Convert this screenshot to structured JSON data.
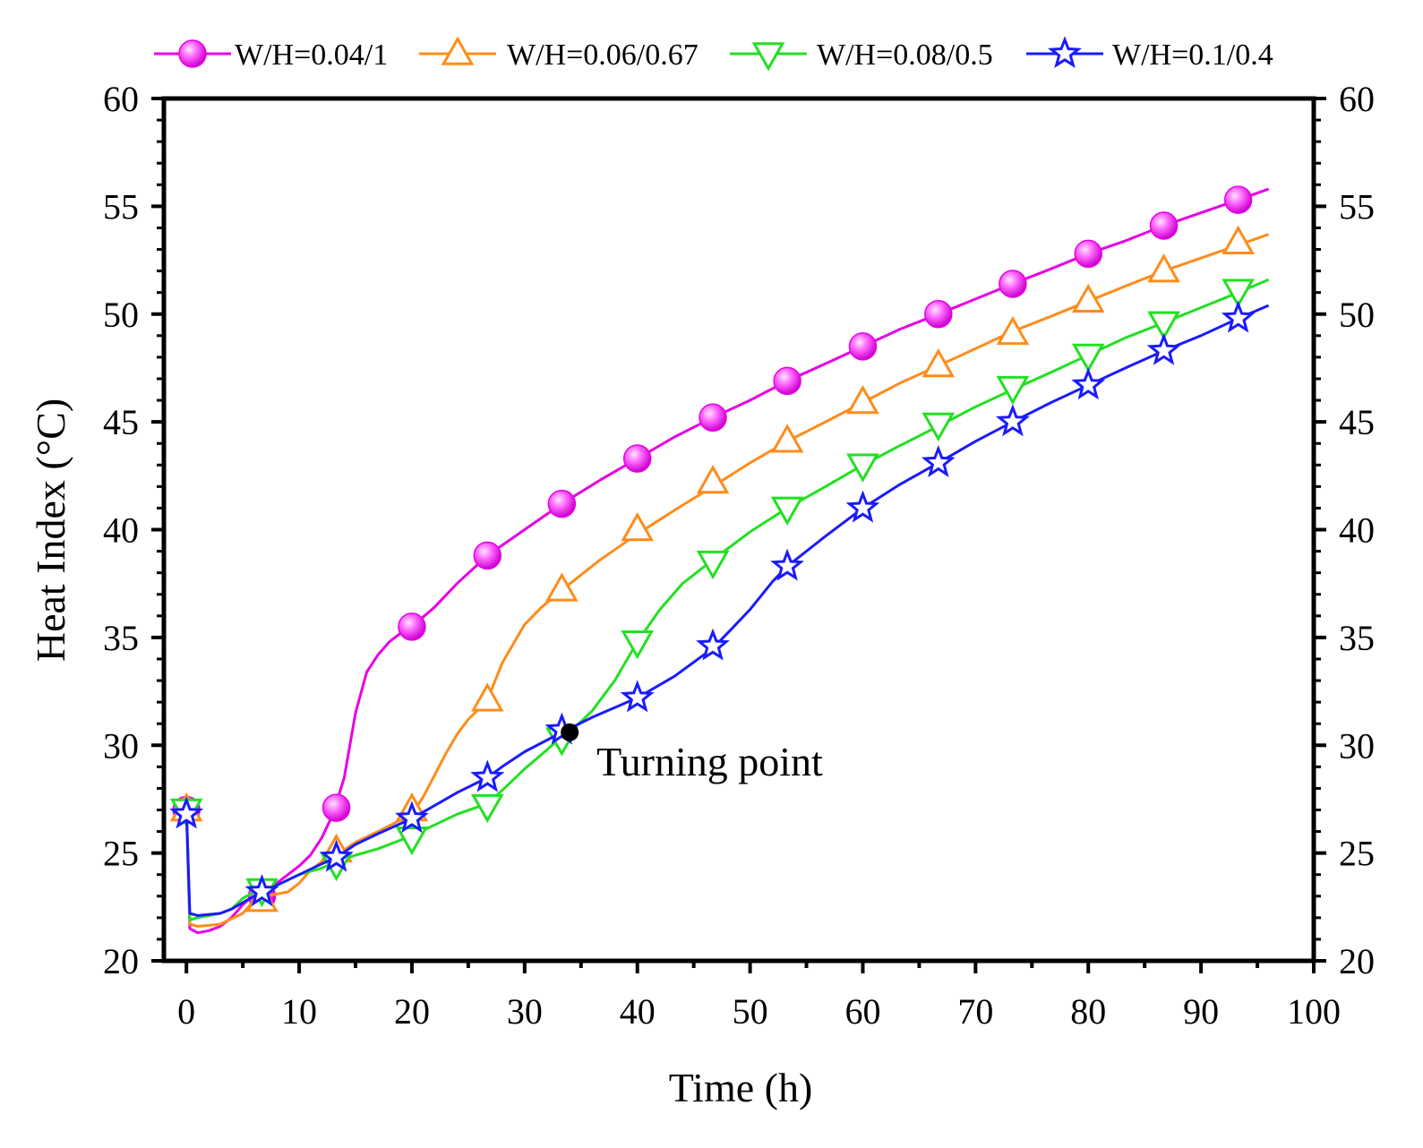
{
  "chart_data": {
    "type": "line",
    "title": "",
    "xlabel": "Time (h)",
    "ylabel": "Heat Index (°C)",
    "xlim": [
      -2,
      100
    ],
    "ylim": [
      20,
      60
    ],
    "xticks": [
      0,
      10,
      20,
      30,
      40,
      50,
      60,
      70,
      80,
      90,
      100
    ],
    "yticks": [
      20,
      25,
      30,
      35,
      40,
      45,
      50,
      55,
      60
    ],
    "xtick_labels": [
      "0",
      "10",
      "20",
      "30",
      "40",
      "50",
      "60",
      "70",
      "80",
      "90",
      "100"
    ],
    "ytick_labels": [
      "20",
      "25",
      "30",
      "35",
      "40",
      "45",
      "50",
      "55",
      "60"
    ],
    "legend_position": "top",
    "series": [
      {
        "name": "W/H=0.04/1",
        "color": "#e600e6",
        "marker": "sphere",
        "curve": [
          [
            0,
            27
          ],
          [
            0.3,
            21.5
          ],
          [
            1,
            21.3
          ],
          [
            2,
            21.4
          ],
          [
            3,
            21.6
          ],
          [
            4,
            22.0
          ],
          [
            5,
            22.6
          ],
          [
            6,
            23.1
          ],
          [
            7,
            23.3
          ],
          [
            8,
            23.6
          ],
          [
            9,
            24.0
          ],
          [
            10,
            24.4
          ],
          [
            11,
            24.9
          ],
          [
            12,
            25.7
          ],
          [
            13,
            26.8
          ],
          [
            14,
            28.5
          ],
          [
            15,
            31.5
          ],
          [
            16,
            33.4
          ],
          [
            17,
            34.2
          ],
          [
            18,
            34.8
          ],
          [
            19,
            35.2
          ],
          [
            20,
            35.5
          ],
          [
            22,
            36.4
          ],
          [
            24,
            37.5
          ],
          [
            26.7,
            38.8
          ],
          [
            30,
            40.0
          ],
          [
            33.3,
            41.2
          ],
          [
            36.7,
            42.3
          ],
          [
            40,
            43.3
          ],
          [
            43.3,
            44.3
          ],
          [
            46.7,
            45.2
          ],
          [
            50,
            46.0
          ],
          [
            53.3,
            46.9
          ],
          [
            56.7,
            47.7
          ],
          [
            60,
            48.5
          ],
          [
            63.3,
            49.3
          ],
          [
            66.7,
            50.0
          ],
          [
            70,
            50.7
          ],
          [
            73.3,
            51.4
          ],
          [
            76.7,
            52.1
          ],
          [
            80,
            52.8
          ],
          [
            83.3,
            53.4
          ],
          [
            86.7,
            54.1
          ],
          [
            90,
            54.7
          ],
          [
            93.3,
            55.3
          ],
          [
            96,
            55.8
          ]
        ],
        "markers": [
          [
            0,
            27
          ],
          [
            6.7,
            23.0
          ],
          [
            13.3,
            27.1
          ],
          [
            20,
            35.5
          ],
          [
            26.7,
            38.8
          ],
          [
            33.3,
            41.2
          ],
          [
            40,
            43.3
          ],
          [
            46.7,
            45.2
          ],
          [
            53.3,
            46.9
          ],
          [
            60,
            48.5
          ],
          [
            66.7,
            50.0
          ],
          [
            73.3,
            51.4
          ],
          [
            80,
            52.8
          ],
          [
            86.7,
            54.1
          ],
          [
            93.3,
            55.3
          ]
        ]
      },
      {
        "name": "W/H=0.06/0.67",
        "color": "#ff8c1a",
        "marker": "triangle-up",
        "curve": [
          [
            0,
            27
          ],
          [
            0.3,
            21.7
          ],
          [
            1,
            21.6
          ],
          [
            3,
            21.7
          ],
          [
            5,
            22.2
          ],
          [
            6,
            22.8
          ],
          [
            7,
            23.0
          ],
          [
            9,
            23.2
          ],
          [
            10,
            23.6
          ],
          [
            11,
            24.2
          ],
          [
            12,
            24.6
          ],
          [
            13.3,
            24.9
          ],
          [
            15,
            25.5
          ],
          [
            17,
            26.0
          ],
          [
            20,
            26.8
          ],
          [
            21,
            27.6
          ],
          [
            22,
            28.6
          ],
          [
            23,
            29.6
          ],
          [
            24,
            30.5
          ],
          [
            25,
            31.2
          ],
          [
            26.7,
            32.1
          ],
          [
            28,
            33.8
          ],
          [
            30,
            35.6
          ],
          [
            31.5,
            36.4
          ],
          [
            33.3,
            37.2
          ],
          [
            36.7,
            38.6
          ],
          [
            40,
            39.8
          ],
          [
            43.3,
            40.9
          ],
          [
            46.7,
            42.0
          ],
          [
            50,
            43.1
          ],
          [
            53.3,
            44.1
          ],
          [
            56.7,
            45.0
          ],
          [
            60,
            45.9
          ],
          [
            63.3,
            46.8
          ],
          [
            66.7,
            47.6
          ],
          [
            70,
            48.4
          ],
          [
            73.3,
            49.2
          ],
          [
            76.7,
            49.9
          ],
          [
            80,
            50.6
          ],
          [
            83.3,
            51.3
          ],
          [
            86.7,
            52.0
          ],
          [
            90,
            52.6
          ],
          [
            93.3,
            53.2
          ],
          [
            96,
            53.7
          ]
        ],
        "markers": [
          [
            0,
            27
          ],
          [
            6.7,
            22.8
          ],
          [
            13.3,
            25.1
          ],
          [
            20,
            27.0
          ],
          [
            26.7,
            32.1
          ],
          [
            33.3,
            37.2
          ],
          [
            40,
            40.0
          ],
          [
            46.7,
            42.2
          ],
          [
            53.3,
            44.1
          ],
          [
            60,
            45.9
          ],
          [
            66.7,
            47.6
          ],
          [
            73.3,
            49.1
          ],
          [
            80,
            50.6
          ],
          [
            86.7,
            52.0
          ],
          [
            93.3,
            53.3
          ]
        ]
      },
      {
        "name": "W/H=0.08/0.5",
        "color": "#22e022",
        "marker": "triangle-down",
        "curve": [
          [
            0,
            27
          ],
          [
            0.3,
            21.9
          ],
          [
            1,
            22.0
          ],
          [
            3,
            22.2
          ],
          [
            4,
            22.4
          ],
          [
            5,
            22.9
          ],
          [
            6,
            23.2
          ],
          [
            7,
            23.3
          ],
          [
            8,
            23.5
          ],
          [
            10,
            24.0
          ],
          [
            12,
            24.3
          ],
          [
            13.3,
            24.6
          ],
          [
            15,
            24.9
          ],
          [
            17,
            25.2
          ],
          [
            20,
            25.8
          ],
          [
            22,
            26.3
          ],
          [
            24,
            26.8
          ],
          [
            26.7,
            27.3
          ],
          [
            28,
            27.9
          ],
          [
            30,
            28.9
          ],
          [
            32,
            29.8
          ],
          [
            33.3,
            30.4
          ],
          [
            34,
            30.6
          ],
          [
            36,
            31.6
          ],
          [
            38,
            33.0
          ],
          [
            40,
            34.8
          ],
          [
            42,
            36.3
          ],
          [
            44,
            37.5
          ],
          [
            46.7,
            38.6
          ],
          [
            50,
            39.9
          ],
          [
            53.3,
            41.0
          ],
          [
            56.7,
            42.0
          ],
          [
            60,
            43.0
          ],
          [
            63.3,
            43.9
          ],
          [
            66.7,
            44.8
          ],
          [
            70,
            45.7
          ],
          [
            73.3,
            46.5
          ],
          [
            76.7,
            47.3
          ],
          [
            80,
            48.1
          ],
          [
            83.3,
            48.9
          ],
          [
            86.7,
            49.6
          ],
          [
            90,
            50.3
          ],
          [
            93.3,
            51.0
          ],
          [
            96,
            51.6
          ]
        ],
        "markers": [
          [
            0,
            27
          ],
          [
            6.7,
            23.3
          ],
          [
            13.3,
            24.5
          ],
          [
            20,
            25.7
          ],
          [
            26.7,
            27.2
          ],
          [
            33.3,
            30.3
          ],
          [
            40,
            34.8
          ],
          [
            46.7,
            38.5
          ],
          [
            53.3,
            41.0
          ],
          [
            60,
            43.0
          ],
          [
            66.7,
            44.9
          ],
          [
            73.3,
            46.6
          ],
          [
            80,
            48.1
          ],
          [
            86.7,
            49.6
          ],
          [
            93.3,
            51.1
          ]
        ]
      },
      {
        "name": "W/H=0.1/0.4",
        "color": "#1a1aff",
        "marker": "star",
        "curve": [
          [
            0,
            27
          ],
          [
            0.3,
            22.2
          ],
          [
            1,
            22.1
          ],
          [
            3,
            22.2
          ],
          [
            4,
            22.4
          ],
          [
            5,
            22.7
          ],
          [
            6,
            23.0
          ],
          [
            6.7,
            23.2
          ],
          [
            8,
            23.5
          ],
          [
            10,
            24.0
          ],
          [
            12,
            24.5
          ],
          [
            13.3,
            24.8
          ],
          [
            15,
            25.4
          ],
          [
            17,
            25.9
          ],
          [
            20,
            26.6
          ],
          [
            22,
            27.2
          ],
          [
            24,
            27.8
          ],
          [
            26.7,
            28.5
          ],
          [
            28,
            29.0
          ],
          [
            30,
            29.7
          ],
          [
            33.3,
            30.6
          ],
          [
            36,
            31.3
          ],
          [
            40,
            32.2
          ],
          [
            43.3,
            33.2
          ],
          [
            46.7,
            34.5
          ],
          [
            48,
            35.2
          ],
          [
            50,
            36.3
          ],
          [
            52,
            37.6
          ],
          [
            53.3,
            38.3
          ],
          [
            56.7,
            39.7
          ],
          [
            60,
            41.0
          ],
          [
            63.3,
            42.1
          ],
          [
            66.7,
            43.1
          ],
          [
            70,
            44.1
          ],
          [
            73.3,
            45.0
          ],
          [
            76.7,
            45.9
          ],
          [
            80,
            46.7
          ],
          [
            83.3,
            47.5
          ],
          [
            86.7,
            48.3
          ],
          [
            90,
            49.0
          ],
          [
            93.3,
            49.8
          ],
          [
            96,
            50.4
          ]
        ],
        "markers": [
          [
            0,
            26.8
          ],
          [
            6.7,
            23.2
          ],
          [
            13.3,
            24.8
          ],
          [
            20,
            26.6
          ],
          [
            26.7,
            28.5
          ],
          [
            33.3,
            30.7
          ],
          [
            40,
            32.2
          ],
          [
            46.7,
            34.6
          ],
          [
            53.3,
            38.3
          ],
          [
            60,
            41.0
          ],
          [
            66.7,
            43.1
          ],
          [
            73.3,
            45.0
          ],
          [
            80,
            46.7
          ],
          [
            86.7,
            48.3
          ],
          [
            93.3,
            49.8
          ]
        ]
      }
    ],
    "annotations": [
      {
        "text": "Turning point",
        "point": [
          34,
          30.6
        ]
      }
    ]
  }
}
